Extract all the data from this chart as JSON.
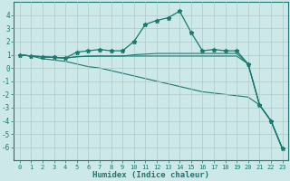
{
  "x": [
    0,
    1,
    2,
    3,
    4,
    5,
    6,
    7,
    8,
    9,
    10,
    11,
    12,
    13,
    14,
    15,
    16,
    17,
    18,
    19,
    20,
    21,
    22,
    23
  ],
  "line1": [
    1.0,
    0.9,
    0.85,
    0.8,
    0.75,
    1.2,
    1.3,
    1.4,
    1.3,
    1.3,
    2.0,
    3.3,
    3.6,
    3.8,
    4.3,
    2.7,
    1.3,
    1.4,
    1.3,
    1.3,
    0.3,
    -2.8,
    -4.0,
    -6.1
  ],
  "line2": [
    1.0,
    0.9,
    0.85,
    0.8,
    0.75,
    0.85,
    0.9,
    0.9,
    0.9,
    0.9,
    1.0,
    1.05,
    1.1,
    1.1,
    1.1,
    1.1,
    1.1,
    1.1,
    1.1,
    1.1,
    0.3,
    -2.8,
    -4.0,
    -6.1
  ],
  "line3": [
    1.0,
    0.9,
    0.85,
    0.8,
    0.75,
    0.85,
    0.88,
    0.9,
    0.9,
    0.9,
    0.9,
    0.9,
    0.9,
    0.9,
    0.9,
    0.9,
    0.9,
    0.9,
    0.9,
    0.9,
    0.3,
    -2.8,
    -4.0,
    -6.1
  ],
  "line4": [
    1.0,
    0.9,
    0.7,
    0.6,
    0.5,
    0.3,
    0.1,
    0.0,
    -0.2,
    -0.4,
    -0.6,
    -0.8,
    -1.0,
    -1.2,
    -1.4,
    -1.6,
    -1.8,
    -1.9,
    -2.0,
    -2.1,
    -2.2,
    -2.8,
    -4.0,
    -6.1
  ],
  "color": "#1a7a6e",
  "bg_color": "#cce8e8",
  "grid_color": "#b0c8c8",
  "xlabel": "Humidex (Indice chaleur)",
  "ylim": [
    -7,
    5
  ],
  "xlim": [
    -0.5,
    23.5
  ],
  "yticks": [
    4,
    3,
    2,
    1,
    0,
    -1,
    -2,
    -3,
    -4,
    -5,
    -6
  ],
  "xticks": [
    0,
    1,
    2,
    3,
    4,
    5,
    6,
    7,
    8,
    9,
    10,
    11,
    12,
    13,
    14,
    15,
    16,
    17,
    18,
    19,
    20,
    21,
    22,
    23
  ]
}
